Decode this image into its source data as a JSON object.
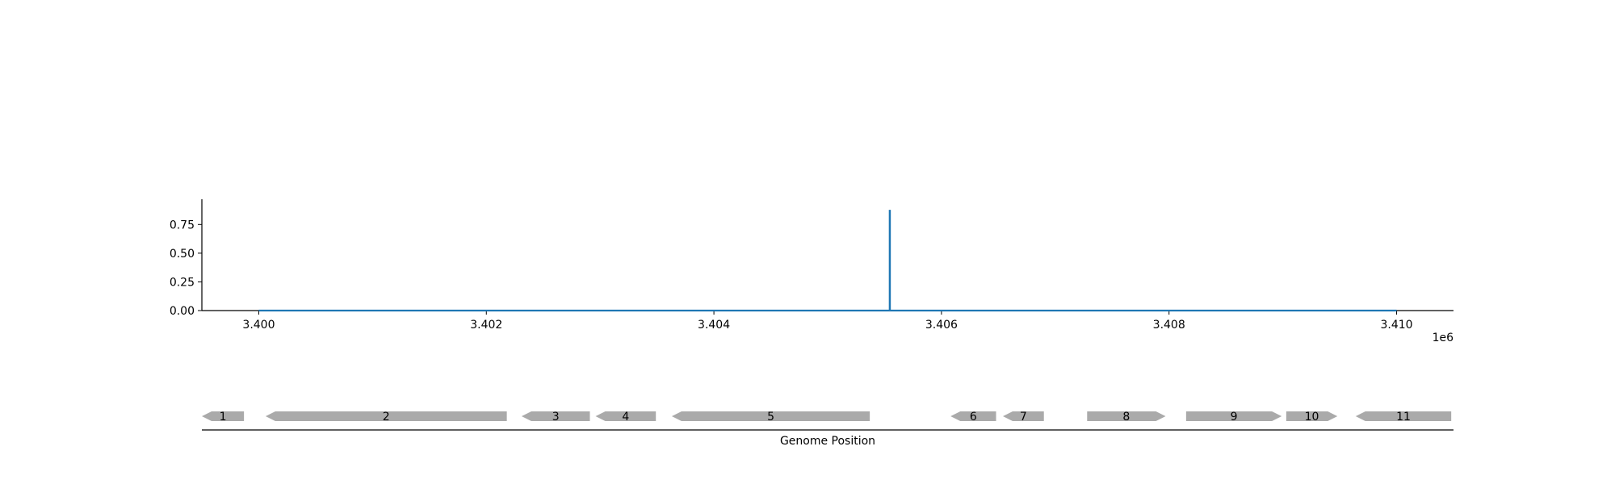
{
  "chart_data": {
    "type": "line",
    "title": "",
    "xlabel": "",
    "ylabel": "",
    "offset_label": "1e6",
    "xlim": [
      3399500,
      3410500
    ],
    "ylim": [
      0,
      0.97
    ],
    "x_ticks": [
      3400000,
      3402000,
      3404000,
      3406000,
      3408000,
      3410000
    ],
    "x_tick_labels": [
      "3.400",
      "3.402",
      "3.404",
      "3.406",
      "3.408",
      "3.410"
    ],
    "y_ticks": [
      0.0,
      0.25,
      0.5,
      0.75
    ],
    "y_tick_labels": [
      "0.00",
      "0.25",
      "0.50",
      "0.75"
    ],
    "series": [
      {
        "color": "#1f77b4",
        "x": [
          3400000,
          3405545,
          3405545,
          3405547,
          3405547,
          3410000
        ],
        "y": [
          0,
          0,
          0.87,
          0.87,
          0,
          0
        ]
      }
    ]
  },
  "gene_track": {
    "xlabel": "Genome Position",
    "color": "#aaaaaa",
    "genes": [
      {
        "label": "1",
        "start": 3399500,
        "end": 3399870,
        "strand": "-"
      },
      {
        "label": "2",
        "start": 3400060,
        "end": 3402180,
        "strand": "-"
      },
      {
        "label": "3",
        "start": 3402310,
        "end": 3402910,
        "strand": "-"
      },
      {
        "label": "4",
        "start": 3402960,
        "end": 3403490,
        "strand": "-"
      },
      {
        "label": "5",
        "start": 3403630,
        "end": 3405370,
        "strand": "-"
      },
      {
        "label": "6",
        "start": 3406080,
        "end": 3406480,
        "strand": "-"
      },
      {
        "label": "7",
        "start": 3406540,
        "end": 3406900,
        "strand": "-"
      },
      {
        "label": "8",
        "start": 3407280,
        "end": 3407970,
        "strand": "+"
      },
      {
        "label": "9",
        "start": 3408150,
        "end": 3408990,
        "strand": "+"
      },
      {
        "label": "10",
        "start": 3409030,
        "end": 3409480,
        "strand": "+"
      },
      {
        "label": "11",
        "start": 3409640,
        "end": 3410480,
        "strand": "-"
      }
    ]
  }
}
